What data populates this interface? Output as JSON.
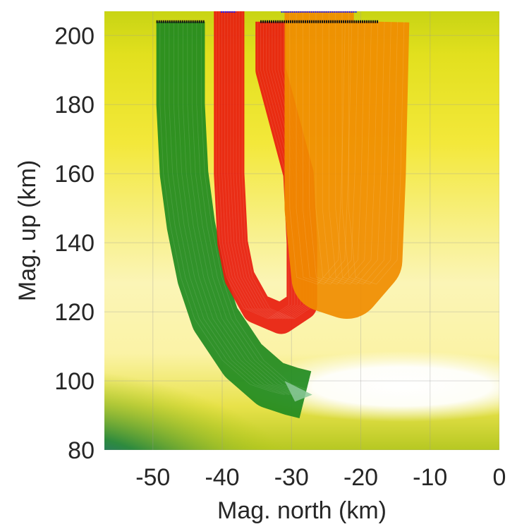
{
  "chart_data": {
    "type": "line",
    "title": "",
    "xlabel": "Mag. north (km)",
    "ylabel": "Mag. up (km)",
    "xlim": [
      -57,
      0
    ],
    "ylim": [
      80,
      207
    ],
    "xticks": [
      -50,
      -40,
      -30,
      -20,
      -10,
      0
    ],
    "xtick_labels": [
      "-50",
      "-40",
      "-30",
      "-20",
      "-10",
      "0"
    ],
    "yticks": [
      80,
      100,
      120,
      140,
      160,
      180,
      200
    ],
    "ytick_labels": [
      "80",
      "100",
      "120",
      "140",
      "160",
      "180",
      "200"
    ],
    "grid": true,
    "background": {
      "kind": "field-map",
      "description_colors": [
        "#0a1aa8",
        "#2e8b3e",
        "#b8cc10",
        "#f2e62c",
        "#fbf7b8",
        "#ffffff"
      ]
    },
    "series": [
      {
        "color": "#1f8a1f",
        "start_x_range": [
          -49.5,
          -42.5
        ],
        "start_y": 204,
        "centerline": [
          [
            -46,
            204
          ],
          [
            -46,
            180
          ],
          [
            -45.5,
            160
          ],
          [
            -44.5,
            145
          ],
          [
            -43,
            130
          ],
          [
            -41,
            118
          ],
          [
            -37,
            106
          ],
          [
            -33,
            99
          ],
          [
            -30,
            97
          ],
          [
            -28,
            96
          ]
        ],
        "half_width_km": 3.5,
        "end_patch": [
          [
            -31,
            100
          ],
          [
            -27,
            96
          ],
          [
            -29.5,
            94
          ]
        ]
      },
      {
        "color": "#e81c0e",
        "start_x_range": [
          -40.2,
          -37.8
        ],
        "start_y": 207,
        "centerline": [
          [
            -39,
            207
          ],
          [
            -39,
            190
          ],
          [
            -39,
            160
          ],
          [
            -38.5,
            140
          ],
          [
            -37.5,
            130
          ],
          [
            -35,
            121
          ],
          [
            -31.5,
            118
          ],
          [
            -28.5,
            122
          ],
          [
            -28.5,
            140
          ],
          [
            -29,
            160
          ],
          [
            -33,
            190
          ],
          [
            -33,
            204
          ]
        ],
        "half_width_km": 2.2
      },
      {
        "color": "#f08c00",
        "start_x_range": [
          -31.5,
          -20.5
        ],
        "start_y": 207,
        "centerline": [
          [
            -26,
            207
          ],
          [
            -26,
            180
          ],
          [
            -26,
            150
          ],
          [
            -25,
            130
          ],
          [
            -22,
            128
          ],
          [
            -19,
            135
          ],
          [
            -18.5,
            160
          ],
          [
            -18,
            204
          ]
        ],
        "half_width_km": 5.0
      }
    ],
    "markers": {
      "black_start_rows": [
        {
          "x_range": [
            -49.5,
            -42.5
          ],
          "y": 204
        },
        {
          "x_range": [
            -34.5,
            -17.5
          ],
          "y": 204
        }
      ],
      "blue_start_rows": [
        {
          "x_range": [
            -40.2,
            -38.0
          ],
          "y": 207
        },
        {
          "x_range": [
            -31.5,
            -20.5
          ],
          "y": 207
        }
      ]
    }
  }
}
